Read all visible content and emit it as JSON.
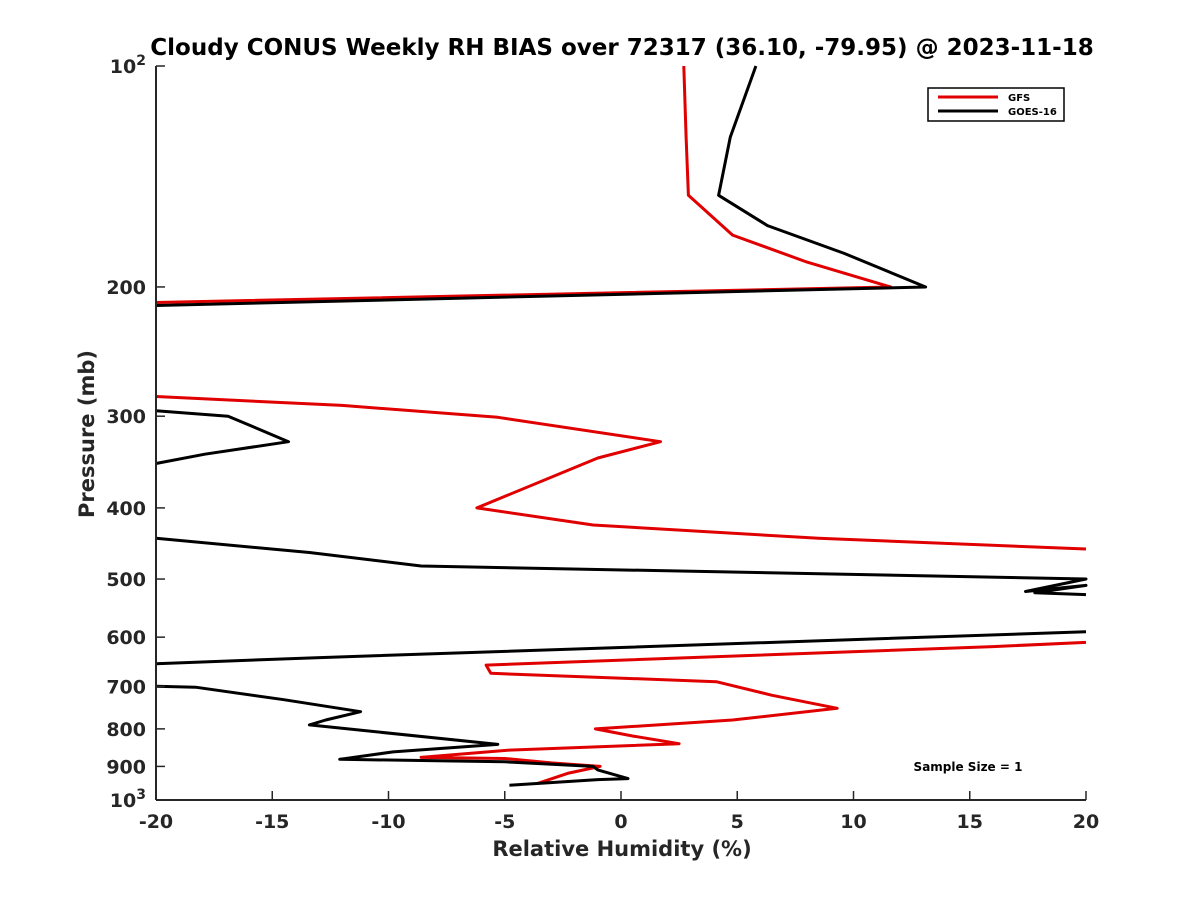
{
  "chart_data": {
    "type": "line",
    "title": "Cloudy CONUS Weekly RH BIAS over 72317 (36.10, -79.95) @ 2023-11-18",
    "xlabel": "Relative Humidity (%)",
    "ylabel": "Pressure (mb)",
    "xlim": [
      -20,
      20
    ],
    "ylim": [
      100,
      1000
    ],
    "y_scale": "log",
    "y_reversed": true,
    "grid": false,
    "legend_position": "top-right",
    "x_ticks": [
      "-20",
      "-15",
      "-10",
      "-5",
      "0",
      "5",
      "10",
      "15",
      "20"
    ],
    "y_ticks": [
      {
        "value": 100,
        "base": "10",
        "exp": "2"
      },
      {
        "value": 200,
        "base": "200",
        "exp": ""
      },
      {
        "value": 300,
        "base": "300",
        "exp": ""
      },
      {
        "value": 400,
        "base": "400",
        "exp": ""
      },
      {
        "value": 500,
        "base": "500",
        "exp": ""
      },
      {
        "value": 600,
        "base": "600",
        "exp": ""
      },
      {
        "value": 700,
        "base": "700",
        "exp": ""
      },
      {
        "value": 800,
        "base": "800",
        "exp": ""
      },
      {
        "value": 900,
        "base": "900",
        "exp": ""
      },
      {
        "value": 1000,
        "base": "10",
        "exp": "3"
      }
    ],
    "annotation": "Sample Size = 1",
    "series": [
      {
        "name": "GFS",
        "color": "#e00000",
        "segments": [
          [
            [
              2.7,
              100
            ],
            [
              2.8,
              125
            ],
            [
              2.9,
              150
            ],
            [
              4.8,
              170
            ],
            [
              8.0,
              185
            ],
            [
              11.6,
              200
            ],
            [
              -20,
              210
            ]
          ],
          [
            [
              -20,
              282
            ],
            [
              -12,
              290
            ],
            [
              -5.3,
              301
            ],
            [
              1.7,
              325
            ],
            [
              -1.0,
              342
            ],
            [
              -6.2,
              400
            ],
            [
              -1.2,
              422
            ],
            [
              8.5,
              440
            ],
            [
              20,
              455
            ]
          ],
          [
            [
              20,
              610
            ],
            [
              16.0,
              618
            ],
            [
              -5.8,
              655
            ],
            [
              -5.6,
              672
            ],
            [
              4.1,
              690
            ],
            [
              6.5,
              720
            ],
            [
              9.3,
              750
            ],
            [
              4.8,
              778
            ],
            [
              -1.1,
              800
            ],
            [
              0.5,
              818
            ],
            [
              2.5,
              838
            ],
            [
              -4.8,
              855
            ],
            [
              -8.6,
              875
            ],
            [
              -5.0,
              878
            ],
            [
              -3.0,
              890
            ],
            [
              -0.9,
              900
            ],
            [
              -2.3,
              920
            ],
            [
              -3.6,
              950
            ]
          ]
        ]
      },
      {
        "name": "GOES-16",
        "color": "#000000",
        "segments": [
          [
            [
              5.8,
              100
            ],
            [
              4.7,
              125
            ],
            [
              4.2,
              150
            ],
            [
              6.3,
              165
            ],
            [
              9.6,
              180
            ],
            [
              13.1,
              200
            ],
            [
              -20,
              212
            ]
          ],
          [
            [
              -20,
              295
            ],
            [
              -16.9,
              300
            ],
            [
              -14.3,
              325
            ],
            [
              -17.9,
              338
            ],
            [
              -20,
              348
            ]
          ],
          [
            [
              -20,
              440
            ],
            [
              -13.4,
              460
            ],
            [
              -8.6,
              480
            ],
            [
              20,
              500
            ],
            [
              17.4,
              520
            ],
            [
              20,
              510
            ],
            [
              17.8,
              522
            ],
            [
              20,
              525
            ]
          ],
          [
            [
              20,
              590
            ],
            [
              -13.1,
              640
            ],
            [
              -20,
              652
            ]
          ],
          [
            [
              -20,
              700
            ],
            [
              -18.3,
              702
            ],
            [
              -14.5,
              730
            ],
            [
              -11.2,
              758
            ],
            [
              -12.7,
              778
            ],
            [
              -13.4,
              790
            ],
            [
              -5.3,
              840
            ],
            [
              -9.8,
              860
            ],
            [
              -12.1,
              880
            ],
            [
              -5.0,
              887
            ],
            [
              -1.2,
              900
            ],
            [
              -1.0,
              910
            ],
            [
              0.3,
              935
            ],
            [
              -1.0,
              938
            ],
            [
              -4.8,
              955
            ]
          ]
        ]
      }
    ]
  }
}
